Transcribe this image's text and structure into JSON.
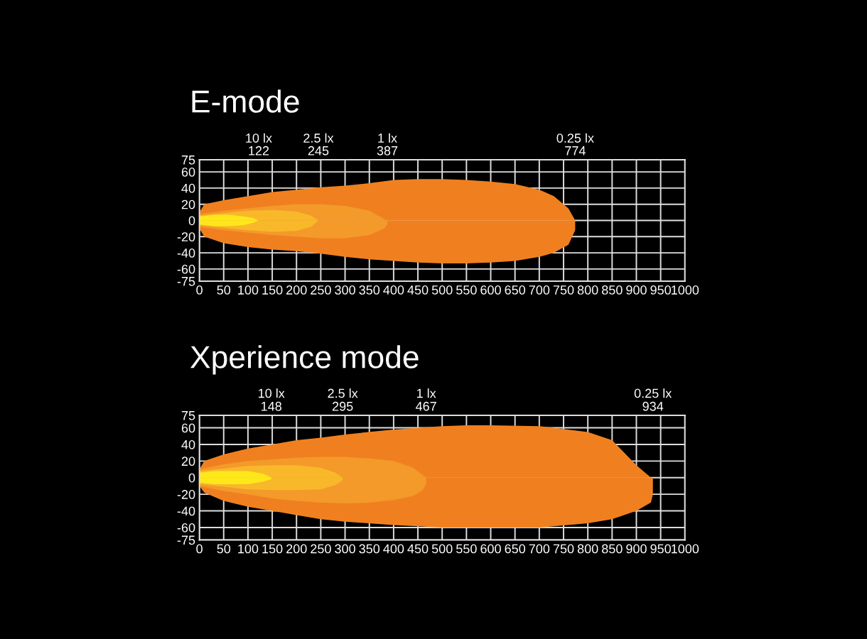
{
  "chart_data": [
    {
      "type": "area",
      "title": "E-mode",
      "xlim": [
        0,
        1000
      ],
      "ylim": [
        -75,
        75
      ],
      "xticks": [
        0,
        50,
        100,
        150,
        200,
        250,
        300,
        350,
        400,
        450,
        500,
        550,
        600,
        650,
        700,
        750,
        800,
        850,
        900,
        950,
        1000
      ],
      "yticks": [
        -75,
        -60,
        -40,
        -20,
        0,
        20,
        40,
        60,
        75
      ],
      "grid": true,
      "x2lim": [
        0,
        1000
      ],
      "x2ticks": [
        122,
        245,
        387,
        774
      ],
      "annotations": [
        "10 lx",
        "2.5 lx",
        "1 lx",
        "0.25 lx"
      ],
      "series": [
        {
          "color": "#f0801f",
          "x": [
            0,
            10,
            50,
            100,
            150,
            200,
            250,
            300,
            350,
            400,
            450,
            500,
            550,
            600,
            650,
            700,
            730,
            760,
            774
          ],
          "values": [
            10,
            20,
            25,
            30,
            35,
            38,
            41,
            43,
            46,
            50,
            51,
            51,
            50,
            48,
            45,
            38,
            30,
            15,
            0
          ]
        },
        {
          "color": "#f0801f",
          "x": [
            0,
            10,
            50,
            100,
            150,
            200,
            250,
            300,
            350,
            400,
            450,
            500,
            550,
            600,
            650,
            700,
            730,
            760,
            774
          ],
          "values": [
            -10,
            -20,
            -28,
            -33,
            -36,
            -38,
            -41,
            -45,
            -48,
            -50,
            -52,
            -53,
            -53,
            -52,
            -50,
            -45,
            -40,
            -30,
            -12
          ]
        },
        {
          "color": "#f39a2a",
          "x": [
            0,
            50,
            100,
            150,
            200,
            250,
            300,
            350,
            380,
            387
          ],
          "values": [
            8,
            12,
            15,
            18,
            20,
            20,
            18,
            12,
            2,
            0
          ]
        },
        {
          "color": "#f39a2a",
          "x": [
            0,
            50,
            100,
            150,
            200,
            250,
            300,
            350,
            380,
            387
          ],
          "values": [
            -8,
            -12,
            -15,
            -18,
            -20,
            -22,
            -22,
            -18,
            -10,
            -5
          ]
        },
        {
          "color": "#f8b82a",
          "x": [
            0,
            50,
            100,
            150,
            200,
            230,
            245
          ],
          "values": [
            6,
            9,
            12,
            13,
            11,
            6,
            0
          ]
        },
        {
          "color": "#f8b82a",
          "x": [
            0,
            50,
            100,
            150,
            200,
            230,
            245
          ],
          "values": [
            -6,
            -9,
            -12,
            -14,
            -13,
            -8,
            0
          ]
        },
        {
          "color": "#ffe81a",
          "x": [
            0,
            30,
            60,
            90,
            110,
            122
          ],
          "values": [
            5,
            7,
            7,
            5,
            3,
            0
          ]
        },
        {
          "color": "#ffe81a",
          "x": [
            0,
            30,
            60,
            90,
            110,
            122
          ],
          "values": [
            -5,
            -7,
            -7,
            -6,
            -3,
            0
          ]
        }
      ]
    },
    {
      "type": "area",
      "title": "Xperience mode",
      "xlim": [
        0,
        1000
      ],
      "ylim": [
        -75,
        75
      ],
      "xticks": [
        0,
        50,
        100,
        150,
        200,
        250,
        300,
        350,
        400,
        450,
        500,
        550,
        600,
        650,
        700,
        750,
        800,
        850,
        900,
        950,
        1000
      ],
      "yticks": [
        -75,
        -60,
        -40,
        -20,
        0,
        20,
        40,
        60,
        75
      ],
      "grid": true,
      "x2lim": [
        0,
        1000
      ],
      "x2ticks": [
        148,
        295,
        467,
        934
      ],
      "annotations": [
        "10 lx",
        "2.5 lx",
        "1 lx",
        "0.25 lx"
      ],
      "series": [
        {
          "color": "#f0801f",
          "x": [
            0,
            10,
            50,
            100,
            150,
            200,
            250,
            300,
            400,
            500,
            550,
            600,
            700,
            800,
            850,
            900,
            930,
            934
          ],
          "values": [
            10,
            20,
            28,
            35,
            40,
            45,
            48,
            52,
            58,
            62,
            63,
            63,
            62,
            55,
            45,
            15,
            0,
            0
          ]
        },
        {
          "color": "#f0801f",
          "x": [
            0,
            10,
            50,
            100,
            150,
            200,
            250,
            300,
            400,
            500,
            550,
            600,
            700,
            800,
            850,
            900,
            930,
            934
          ],
          "values": [
            -10,
            -18,
            -28,
            -35,
            -40,
            -45,
            -50,
            -53,
            -57,
            -60,
            -60,
            -60,
            -60,
            -55,
            -50,
            -40,
            -30,
            -20
          ]
        },
        {
          "color": "#f39a2a",
          "x": [
            0,
            50,
            100,
            150,
            200,
            250,
            300,
            350,
            400,
            440,
            460,
            467
          ],
          "values": [
            10,
            16,
            20,
            22,
            24,
            25,
            25,
            23,
            20,
            12,
            3,
            0
          ]
        },
        {
          "color": "#f39a2a",
          "x": [
            0,
            50,
            100,
            150,
            200,
            250,
            300,
            350,
            400,
            440,
            460,
            467
          ],
          "values": [
            -10,
            -16,
            -20,
            -25,
            -28,
            -30,
            -31,
            -30,
            -27,
            -22,
            -15,
            -8
          ]
        },
        {
          "color": "#f8b82a",
          "x": [
            0,
            50,
            100,
            150,
            200,
            250,
            280,
            295
          ],
          "values": [
            8,
            11,
            14,
            15,
            15,
            12,
            6,
            0
          ]
        },
        {
          "color": "#f8b82a",
          "x": [
            0,
            50,
            100,
            150,
            200,
            250,
            280,
            295
          ],
          "values": [
            -8,
            -11,
            -14,
            -15,
            -15,
            -14,
            -9,
            -3
          ]
        },
        {
          "color": "#ffe81a",
          "x": [
            0,
            30,
            60,
            100,
            130,
            148
          ],
          "values": [
            6,
            8,
            8,
            8,
            5,
            0
          ]
        },
        {
          "color": "#ffe81a",
          "x": [
            0,
            30,
            60,
            100,
            130,
            148
          ],
          "values": [
            -6,
            -8,
            -8,
            -8,
            -5,
            -2
          ]
        }
      ]
    }
  ]
}
